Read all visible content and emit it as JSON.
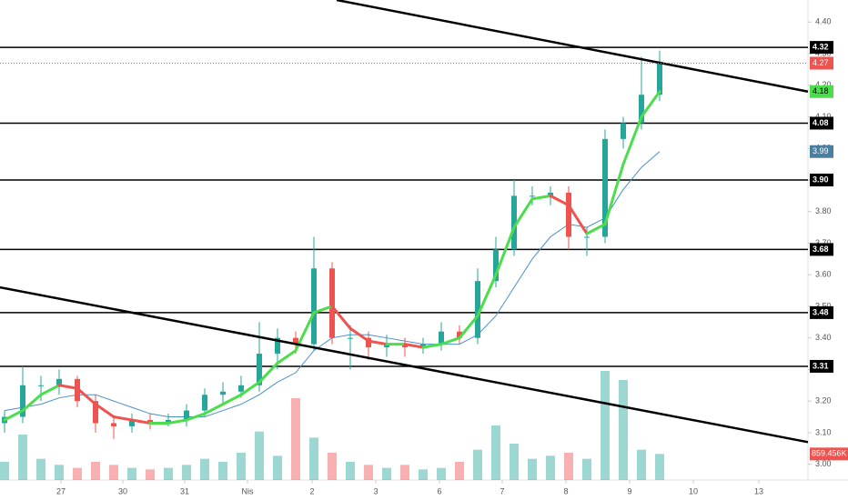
{
  "chart_data": {
    "type": "candlestick",
    "xlim": [
      -0.25,
      44.15
    ],
    "ylim": [
      2.95,
      4.47
    ],
    "xticks": [
      {
        "value": 3.1,
        "label": "27"
      },
      {
        "value": 6.5,
        "label": "30"
      },
      {
        "value": 9.9,
        "label": "31"
      },
      {
        "value": 13.35,
        "label": "Nis"
      },
      {
        "value": 16.9,
        "label": "2"
      },
      {
        "value": 20.4,
        "label": "3"
      },
      {
        "value": 23.9,
        "label": "6"
      },
      {
        "value": 27.35,
        "label": "7"
      },
      {
        "value": 30.85,
        "label": "8"
      },
      {
        "value": 34.35,
        "label": "9"
      },
      {
        "value": 37.85,
        "label": "10"
      },
      {
        "value": 41.45,
        "label": "13"
      }
    ],
    "yticks": [
      {
        "value": 3,
        "label": "3.00"
      },
      {
        "value": 3.1,
        "label": "3.10"
      },
      {
        "value": 3.2,
        "label": "3.20"
      },
      {
        "value": 3.3,
        "label": "3.30"
      },
      {
        "value": 3.4,
        "label": "3.40"
      },
      {
        "value": 3.5,
        "label": "3.50"
      },
      {
        "value": 3.6,
        "label": "3.60"
      },
      {
        "value": 3.7,
        "label": "3.70"
      },
      {
        "value": 3.8,
        "label": "3.80"
      },
      {
        "value": 3.9,
        "label": "3.90"
      },
      {
        "value": 4,
        "label": "4.00"
      },
      {
        "value": 4.1,
        "label": "4.10"
      },
      {
        "value": 4.2,
        "label": "4.20"
      },
      {
        "value": 4.3,
        "label": "4.30"
      },
      {
        "value": 4.4,
        "label": "4.40"
      }
    ],
    "up_color": "#26a69a",
    "down_color": "#ef5350",
    "open": [
      3.13,
      3.15,
      3.25,
      3.25,
      3.27,
      3.2,
      3.13,
      3.12,
      3.14,
      3.13,
      3.14,
      3.17,
      3.22,
      3.23,
      3.25,
      3.35,
      3.4,
      3.38,
      3.62,
      3.4,
      3.4,
      3.37,
      3.38,
      3.37,
      3.38,
      3.42,
      3.4,
      3.58,
      3.68,
      3.85,
      3.85,
      3.86,
      3.72,
      3.72,
      4.03,
      4.08,
      4.17
    ],
    "high": [
      3.17,
      3.31,
      3.28,
      3.3,
      3.28,
      3.22,
      3.15,
      3.16,
      3.16,
      3.16,
      3.19,
      3.24,
      3.26,
      3.28,
      3.45,
      3.43,
      3.42,
      3.72,
      3.64,
      3.44,
      3.42,
      3.41,
      3.4,
      3.4,
      3.45,
      3.44,
      3.62,
      3.72,
      3.9,
      3.88,
      3.88,
      3.88,
      3.75,
      4.06,
      4.1,
      4.29,
      4.31
    ],
    "low": [
      3.1,
      3.13,
      3.2,
      3.22,
      3.18,
      3.1,
      3.08,
      3.1,
      3.11,
      3.12,
      3.12,
      3.15,
      3.19,
      3.21,
      3.23,
      3.3,
      3.35,
      3.36,
      3.38,
      3.3,
      3.33,
      3.34,
      3.34,
      3.35,
      3.36,
      3.38,
      3.38,
      3.56,
      3.66,
      3.82,
      3.82,
      3.68,
      3.66,
      3.7,
      4.0,
      4.06,
      4.15
    ],
    "close": [
      3.15,
      3.25,
      3.25,
      3.27,
      3.2,
      3.13,
      3.12,
      3.14,
      3.13,
      3.14,
      3.17,
      3.22,
      3.23,
      3.25,
      3.35,
      3.4,
      3.38,
      3.62,
      3.4,
      3.4,
      3.37,
      3.38,
      3.37,
      3.38,
      3.42,
      3.4,
      3.58,
      3.68,
      3.85,
      3.85,
      3.86,
      3.72,
      3.72,
      4.03,
      4.08,
      4.17,
      4.27
    ],
    "volume": [
      600,
      1500,
      700,
      500,
      400,
      600,
      500,
      400,
      350,
      400,
      500,
      700,
      600,
      900,
      1600,
      800,
      2700,
      1400,
      900,
      600,
      500,
      400,
      500,
      350,
      400,
      600,
      1000,
      1800,
      1200,
      700,
      800,
      900,
      700,
      3600,
      3300,
      1000,
      859.456
    ],
    "volume_label": "859.456K",
    "fast_ma": {
      "up_color": "#4cdd4c",
      "down_color": "#ef5350",
      "values": [
        3.14,
        3.17,
        3.22,
        3.25,
        3.24,
        3.19,
        3.15,
        3.14,
        3.13,
        3.13,
        3.14,
        3.16,
        3.19,
        3.22,
        3.26,
        3.32,
        3.36,
        3.48,
        3.5,
        3.43,
        3.39,
        3.38,
        3.38,
        3.37,
        3.38,
        3.4,
        3.47,
        3.6,
        3.75,
        3.84,
        3.85,
        3.82,
        3.73,
        3.76,
        3.95,
        4.1,
        4.18
      ]
    },
    "slow_ma": {
      "color": "#4a90c8",
      "values": [
        3.17,
        3.18,
        3.19,
        3.21,
        3.22,
        3.22,
        3.2,
        3.18,
        3.16,
        3.15,
        3.15,
        3.15,
        3.17,
        3.19,
        3.22,
        3.26,
        3.29,
        3.36,
        3.4,
        3.41,
        3.41,
        3.4,
        3.39,
        3.38,
        3.38,
        3.38,
        3.41,
        3.47,
        3.56,
        3.65,
        3.72,
        3.76,
        3.75,
        3.78,
        3.87,
        3.94,
        3.99
      ]
    },
    "trendlines": [
      {
        "x": [
          18.25,
          44.15
        ],
        "y": [
          4.47,
          4.18
        ]
      },
      {
        "x": [
          -0.25,
          44.15
        ],
        "y": [
          3.56,
          3.07
        ]
      }
    ],
    "levels": [
      {
        "value": 4.32,
        "label": "4.32"
      },
      {
        "value": 4.08,
        "label": "4.08"
      },
      {
        "value": 3.9,
        "label": "3.90"
      },
      {
        "value": 3.68,
        "label": "3.68"
      },
      {
        "value": 3.48,
        "label": "3.48"
      },
      {
        "value": 3.31,
        "label": "3.31"
      }
    ],
    "price_tags": [
      {
        "value": 4.27,
        "label": "4.27",
        "color": "#ef5350"
      },
      {
        "value": 4.18,
        "label": "4.18",
        "color": "#4cdd4c"
      },
      {
        "value": 3.99,
        "label": "3.99",
        "color": "#4a7fa0"
      }
    ]
  }
}
